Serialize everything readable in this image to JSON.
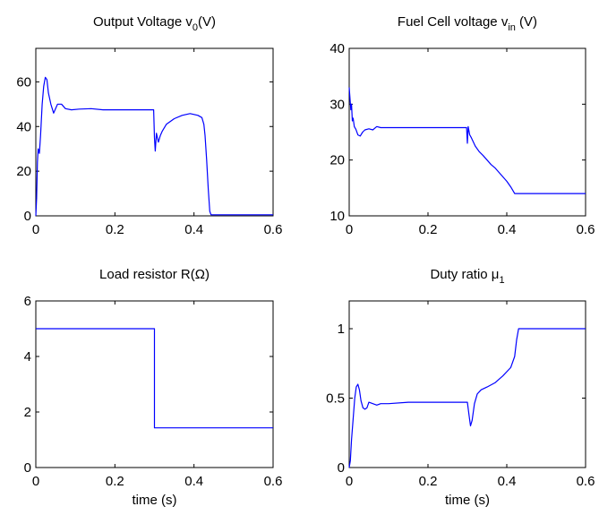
{
  "chart_data": [
    {
      "type": "line",
      "title": "Output Voltage v",
      "title_sub": "0",
      "title_tail": "(V)",
      "xlabel": "",
      "ylabel": "",
      "xlim": [
        0,
        0.6
      ],
      "ylim": [
        0,
        75
      ],
      "xticks": [
        "0",
        "0.2",
        "0.4",
        "0.6"
      ],
      "yticks": [
        "0",
        "20",
        "40",
        "60"
      ],
      "line_color": "#0000ff",
      "series": [
        {
          "x": [
            0,
            0.002,
            0.004,
            0.006,
            0.009,
            0.012,
            0.016,
            0.02,
            0.024,
            0.028,
            0.032,
            0.038,
            0.045,
            0.055,
            0.065,
            0.075,
            0.09,
            0.11,
            0.14,
            0.17,
            0.2,
            0.25,
            0.298,
            0.3,
            0.302,
            0.305,
            0.31,
            0.315,
            0.32,
            0.33,
            0.35,
            0.37,
            0.39,
            0.41,
            0.42,
            0.425,
            0.428,
            0.432,
            0.436,
            0.44,
            0.443,
            0.45,
            0.5,
            0.55,
            0.6
          ],
          "y": [
            0,
            8,
            24,
            30,
            28,
            36,
            50,
            58,
            62,
            61,
            55,
            50,
            46,
            50,
            50,
            48,
            47.5,
            47.8,
            48,
            47.5,
            47.5,
            47.5,
            47.5,
            35,
            29,
            37,
            33,
            36,
            38,
            41,
            43.5,
            45,
            45.8,
            45,
            44,
            41,
            36,
            25,
            12,
            2,
            0.5,
            0.5,
            0.5,
            0.5,
            0.5
          ]
        }
      ]
    },
    {
      "type": "line",
      "title": "Fuel Cell voltage v",
      "title_sub": "in",
      "title_tail": " (V)",
      "xlabel": "",
      "ylabel": "",
      "xlim": [
        0,
        0.6
      ],
      "ylim": [
        10,
        40
      ],
      "xticks": [
        "0",
        "0.2",
        "0.4",
        "0.6"
      ],
      "yticks": [
        "10",
        "20",
        "30",
        "40"
      ],
      "line_color": "#0000ff",
      "series": [
        {
          "x": [
            0,
            0.002,
            0.004,
            0.006,
            0.008,
            0.01,
            0.013,
            0.017,
            0.022,
            0.028,
            0.034,
            0.04,
            0.05,
            0.06,
            0.07,
            0.08,
            0.1,
            0.15,
            0.2,
            0.25,
            0.298,
            0.3,
            0.302,
            0.306,
            0.31,
            0.32,
            0.33,
            0.34,
            0.35,
            0.36,
            0.37,
            0.38,
            0.39,
            0.4,
            0.41,
            0.42,
            0.45,
            0.5,
            0.55,
            0.6
          ],
          "y": [
            33,
            31,
            29,
            30,
            27,
            27.5,
            26,
            25.5,
            24.5,
            24.3,
            25,
            25.4,
            25.6,
            25.4,
            26,
            25.8,
            25.8,
            25.8,
            25.8,
            25.8,
            25.8,
            23,
            26,
            24.5,
            24,
            22.5,
            21.5,
            20.8,
            20,
            19.2,
            18.6,
            17.8,
            17,
            16.2,
            15.2,
            14,
            14,
            14,
            14,
            14
          ]
        }
      ]
    },
    {
      "type": "line",
      "title": "Load resistor R(Ω)",
      "xlabel": "time (s)",
      "ylabel": "",
      "xlim": [
        0,
        0.6
      ],
      "ylim": [
        0,
        6
      ],
      "xticks": [
        "0",
        "0.2",
        "0.4",
        "0.6"
      ],
      "yticks": [
        "0",
        "2",
        "4",
        "6"
      ],
      "line_color": "#0000ff",
      "series": [
        {
          "x": [
            0,
            0.3,
            0.3,
            0.6
          ],
          "y": [
            5,
            5,
            1.43,
            1.43
          ]
        }
      ]
    },
    {
      "type": "line",
      "title": "Duty ratio μ",
      "title_sub": "1",
      "title_tail": "",
      "xlabel": "time (s)",
      "ylabel": "",
      "xlim": [
        0,
        0.6
      ],
      "ylim": [
        0,
        1.2
      ],
      "xticks": [
        "0",
        "0.2",
        "0.4",
        "0.6"
      ],
      "yticks": [
        "0",
        "0.5",
        "1"
      ],
      "line_color": "#0000ff",
      "series": [
        {
          "x": [
            0,
            0.003,
            0.006,
            0.01,
            0.014,
            0.018,
            0.022,
            0.026,
            0.03,
            0.035,
            0.04,
            0.045,
            0.05,
            0.06,
            0.07,
            0.08,
            0.1,
            0.15,
            0.2,
            0.25,
            0.3,
            0.305,
            0.308,
            0.312,
            0.318,
            0.325,
            0.335,
            0.35,
            0.37,
            0.39,
            0.41,
            0.42,
            0.425,
            0.43,
            0.435,
            0.45,
            0.5,
            0.55,
            0.6
          ],
          "y": [
            0,
            0.05,
            0.2,
            0.35,
            0.5,
            0.58,
            0.6,
            0.56,
            0.48,
            0.43,
            0.42,
            0.43,
            0.47,
            0.46,
            0.45,
            0.46,
            0.46,
            0.47,
            0.47,
            0.47,
            0.47,
            0.36,
            0.3,
            0.34,
            0.46,
            0.53,
            0.56,
            0.58,
            0.61,
            0.66,
            0.72,
            0.8,
            0.92,
            1,
            1,
            1,
            1,
            1,
            1
          ]
        }
      ]
    }
  ]
}
